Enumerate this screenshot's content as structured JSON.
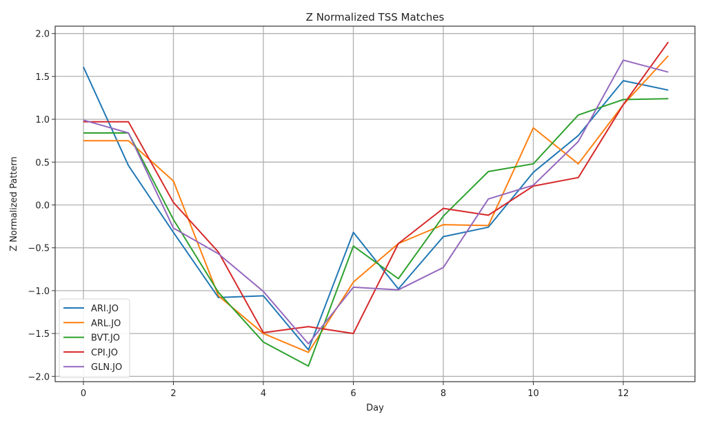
{
  "chart_data": {
    "type": "line",
    "title": "Z Normalized TSS Matches",
    "xlabel": "Day",
    "ylabel": "Z Normalized Pattern",
    "xlim": [
      -0.65,
      13.65
    ],
    "ylim": [
      -2.06,
      2.09
    ],
    "x_ticks": [
      0,
      2,
      4,
      6,
      8,
      10,
      12
    ],
    "y_ticks": [
      -2.0,
      -1.5,
      -1.0,
      -0.5,
      0.0,
      0.5,
      1.0,
      1.5,
      2.0
    ],
    "y_tick_labels": [
      "−2.0",
      "−1.5",
      "−1.0",
      "−0.5",
      "0.0",
      "0.5",
      "1.0",
      "1.5",
      "2.0"
    ],
    "grid": true,
    "legend_position": "lower left",
    "x": [
      0,
      1,
      2,
      3,
      4,
      5,
      6,
      7,
      8,
      9,
      10,
      11,
      12,
      13
    ],
    "series": [
      {
        "name": "ARI.JO",
        "color": "#1f77b4",
        "values": [
          1.61,
          0.46,
          -0.32,
          -1.08,
          -1.06,
          -1.69,
          -0.32,
          -0.98,
          -0.37,
          -0.26,
          0.38,
          0.81,
          1.45,
          1.34
        ]
      },
      {
        "name": "ARL.JO",
        "color": "#ff7f0e",
        "values": [
          0.75,
          0.75,
          0.28,
          -1.06,
          -1.5,
          -1.72,
          -0.9,
          -0.45,
          -0.23,
          -0.24,
          0.9,
          0.48,
          1.17,
          1.74
        ]
      },
      {
        "name": "BVT.JO",
        "color": "#2ca02c",
        "values": [
          0.84,
          0.84,
          -0.17,
          -1.02,
          -1.6,
          -1.88,
          -0.48,
          -0.86,
          -0.13,
          0.39,
          0.48,
          1.05,
          1.23,
          1.24
        ]
      },
      {
        "name": "CPI.JO",
        "color": "#d62728",
        "values": [
          0.97,
          0.97,
          0.03,
          -0.55,
          -1.49,
          -1.42,
          -1.5,
          -0.45,
          -0.04,
          -0.12,
          0.22,
          0.32,
          1.17,
          1.9
        ]
      },
      {
        "name": "GLN.JO",
        "color": "#9467bd",
        "values": [
          0.99,
          0.84,
          -0.27,
          -0.57,
          -1.01,
          -1.62,
          -0.96,
          -0.99,
          -0.73,
          0.07,
          0.23,
          0.74,
          1.69,
          1.55
        ]
      }
    ]
  }
}
